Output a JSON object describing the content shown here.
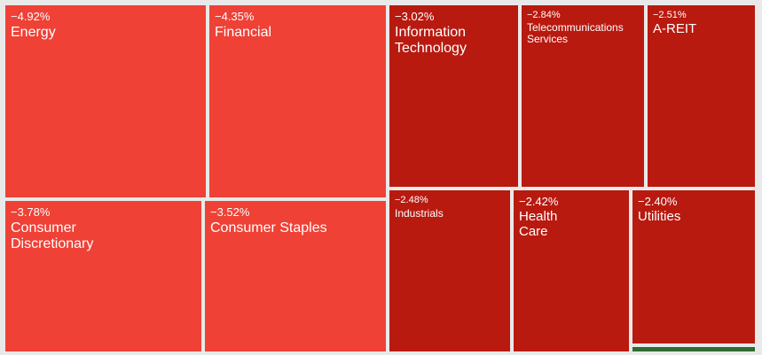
{
  "chart_data": {
    "type": "treemap",
    "value_unit": "%",
    "colors": {
      "light_negative": "#ef4136",
      "dark_negative": "#b81a10",
      "positive": "#2f6b35",
      "border": "#e9e9e9"
    },
    "tiles": [
      {
        "key": "energy",
        "label": "Energy",
        "name_lines": [
          "Energy"
        ],
        "change": "−4.92%",
        "value": -4.92,
        "shade": "light"
      },
      {
        "key": "financial",
        "label": "Financial",
        "name_lines": [
          "Financial"
        ],
        "change": "−4.35%",
        "value": -4.35,
        "shade": "light"
      },
      {
        "key": "consumer-discretionary",
        "label": "Consumer Discretionary",
        "name_lines": [
          "Consumer",
          "Discretionary"
        ],
        "change": "−3.78%",
        "value": -3.78,
        "shade": "light"
      },
      {
        "key": "consumer-staples",
        "label": "Consumer Staples",
        "name_lines": [
          "Consumer Staples"
        ],
        "change": "−3.52%",
        "value": -3.52,
        "shade": "light"
      },
      {
        "key": "information-technology",
        "label": "Information Technology",
        "name_lines": [
          "Information",
          "Technology"
        ],
        "change": "−3.02%",
        "value": -3.02,
        "shade": "dark"
      },
      {
        "key": "telecommunications-services",
        "label": "Telecommunications Services",
        "name_lines": [
          "Telecommunications",
          "Services"
        ],
        "change": "−2.84%",
        "value": -2.84,
        "shade": "dark"
      },
      {
        "key": "a-reit",
        "label": "A-REIT",
        "name_lines": [
          "A-REIT"
        ],
        "change": "−2.51%",
        "value": -2.51,
        "shade": "dark"
      },
      {
        "key": "industrials",
        "label": "Industrials",
        "name_lines": [
          "Industrials"
        ],
        "change": "−2.48%",
        "value": -2.48,
        "shade": "dark"
      },
      {
        "key": "health-care",
        "label": "Health Care",
        "name_lines": [
          "Health",
          "Care"
        ],
        "change": "−2.42%",
        "value": -2.42,
        "shade": "dark"
      },
      {
        "key": "utilities",
        "label": "Utilities",
        "name_lines": [
          "Utilities"
        ],
        "change": "−2.40%",
        "value": -2.4,
        "shade": "dark"
      },
      {
        "key": "positive-sliver",
        "label": "",
        "name_lines": [],
        "change": "",
        "value": null,
        "shade": "positive"
      }
    ]
  }
}
